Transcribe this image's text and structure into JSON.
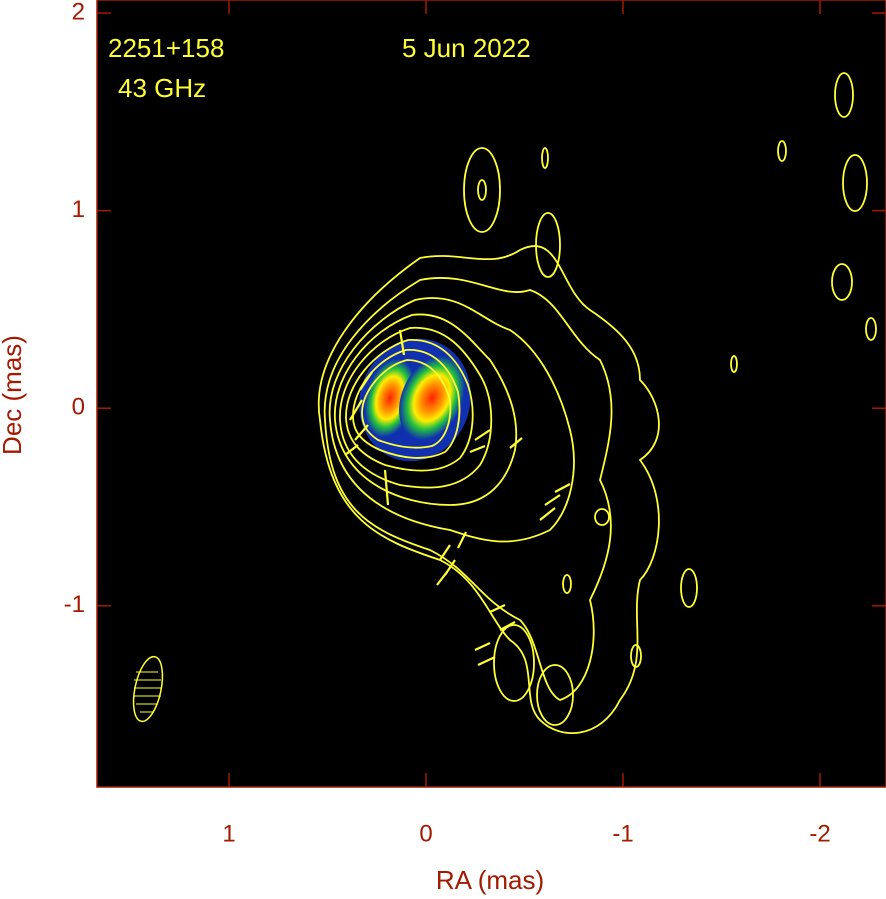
{
  "chart_data": {
    "type": "contour",
    "annotations": [
      "2251+158",
      "43 GHz",
      "5 Jun 2022"
    ],
    "x_label": "RA (mas)",
    "y_label": "Dec (mas)",
    "xlim": [
      1.67,
      -2.335
    ],
    "xticks": [
      1,
      0,
      -1,
      -2
    ],
    "ylim": [
      -1.917,
      2.066
    ],
    "yticks": [
      2,
      1,
      0,
      -1
    ]
  }
}
